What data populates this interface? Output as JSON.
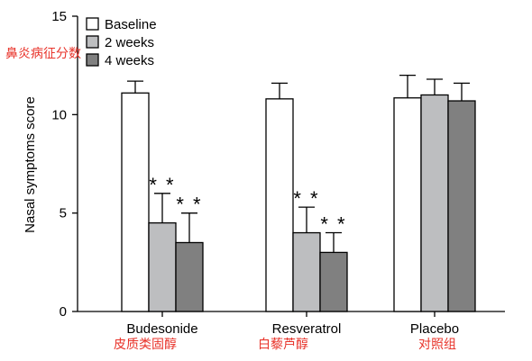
{
  "chart_data": {
    "type": "bar",
    "ylabel": "Nasal symptoms score",
    "ylim": [
      0,
      15
    ],
    "yticks": [
      0,
      5,
      10,
      15
    ],
    "categories": [
      "Budesonide",
      "Resveratrol",
      "Placebo"
    ],
    "categories_cn": [
      "皮质类固醇",
      "白藜芦醇",
      "对照组"
    ],
    "ylabel_cn": "鼻炎病征分数",
    "legend_position": "top-left",
    "series": [
      {
        "name": "Baseline",
        "color": "#ffffff",
        "values": [
          11.1,
          10.8,
          10.85
        ],
        "errors": [
          0.6,
          0.8,
          1.15
        ],
        "annotations": [
          "",
          "",
          ""
        ]
      },
      {
        "name": "2 weeks",
        "color": "#bdbec0",
        "values": [
          4.5,
          4.0,
          11.0
        ],
        "errors": [
          1.5,
          1.3,
          0.8
        ],
        "annotations": [
          "**",
          "**",
          ""
        ]
      },
      {
        "name": "4 weeks",
        "color": "#808080",
        "values": [
          3.5,
          3.0,
          10.7
        ],
        "errors": [
          1.5,
          1.0,
          0.9
        ],
        "annotations": [
          "**",
          "**",
          ""
        ]
      }
    ]
  }
}
